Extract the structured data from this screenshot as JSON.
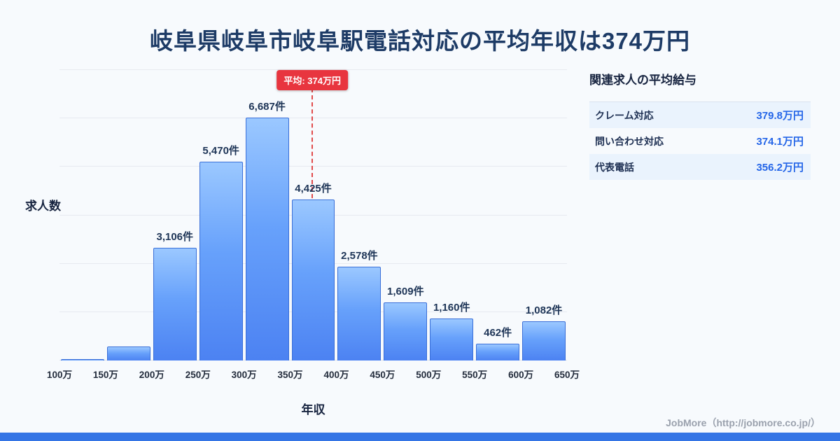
{
  "title": "岐阜県岐阜市岐阜駅電話対応の平均年収は374万円",
  "chart_data": {
    "type": "bar",
    "title": "岐阜県岐阜市岐阜駅電話対応の平均年収は374万円",
    "xlabel": "年収",
    "ylabel": "求人数",
    "ticks": [
      "100万",
      "150万",
      "200万",
      "250万",
      "300万",
      "350万",
      "400万",
      "450万",
      "500万",
      "550万",
      "600万",
      "650万"
    ],
    "values": [
      40,
      380,
      3106,
      5470,
      6687,
      4425,
      2578,
      1609,
      1160,
      462,
      1082
    ],
    "labels": [
      "",
      "",
      "3,106件",
      "5,470件",
      "6,687件",
      "4,425件",
      "2,578件",
      "1,609件",
      "1,160件",
      "462件",
      "1,082件"
    ],
    "ylim": [
      0,
      8000
    ],
    "grid": "horizontal",
    "average": {
      "value": 374,
      "label": "平均: 374万円",
      "axis_min": 100,
      "axis_max": 650
    }
  },
  "side_panel": {
    "heading": "関連求人の平均給与",
    "rows": [
      {
        "label": "クレーム対応",
        "value": "379.8万円"
      },
      {
        "label": "問い合わせ対応",
        "value": "374.1万円"
      },
      {
        "label": "代表電話",
        "value": "356.2万円"
      }
    ]
  },
  "footer": {
    "attribution": "JobMore（http://jobmore.co.jp/）"
  },
  "colors": {
    "background": "#f7fafd",
    "title_navy": "#1d3b66",
    "bar_top": "#9bc8ff",
    "bar_bottom": "#4c82f2",
    "bar_border": "#3a6fd8",
    "average_red": "#e8353f",
    "value_blue": "#2566e8",
    "panel_row_alt": "#eaf3fd",
    "footer_strip": "#3575e5"
  }
}
